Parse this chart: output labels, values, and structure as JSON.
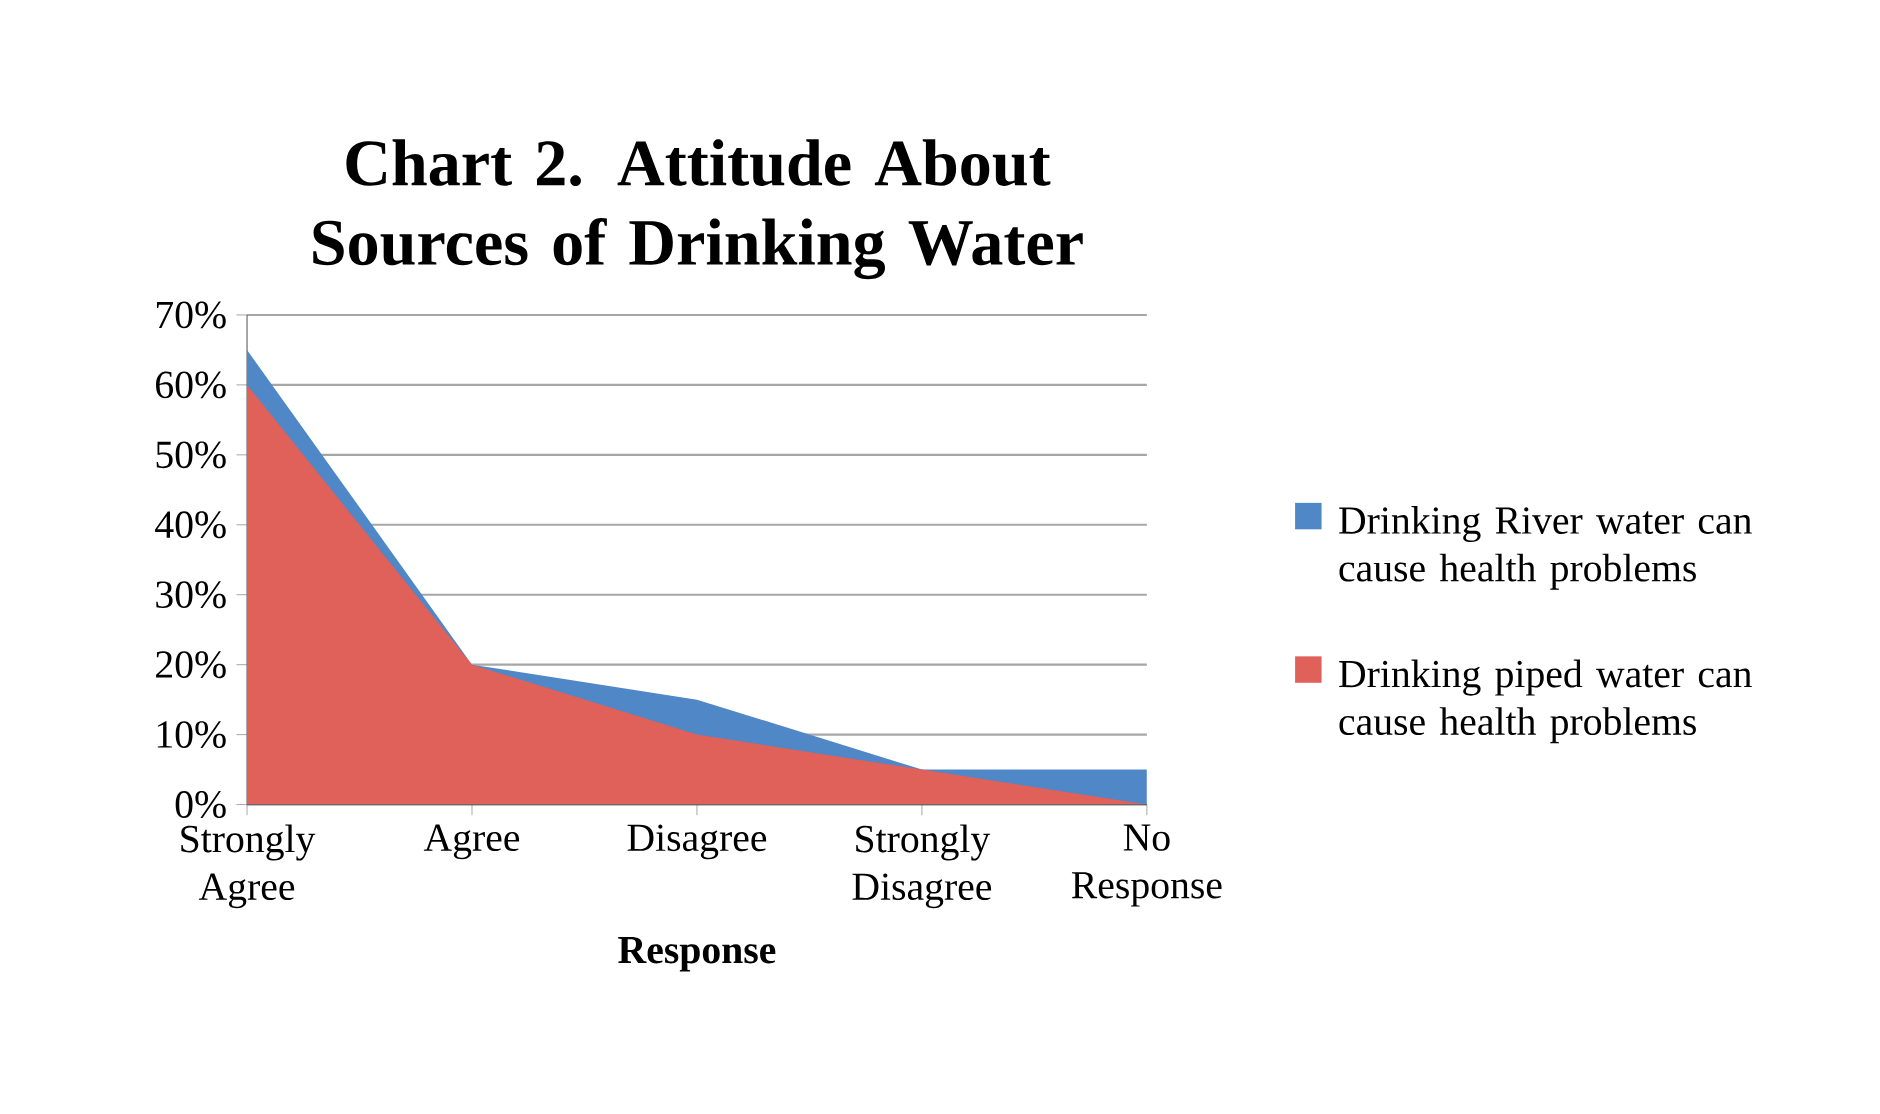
{
  "chart_data": {
    "type": "area",
    "title": "Chart 2. Attitude About Sources of Drinking Water",
    "xlabel": "Response",
    "categories": [
      "Strongly Agree",
      "Agree",
      "Disagree",
      "Strongly Disagree",
      "No Response"
    ],
    "series": [
      {
        "name": "Drinking River water can cause health problems",
        "color": "#4f87c7",
        "values": [
          65,
          20,
          15,
          5,
          5
        ]
      },
      {
        "name": "Drinking piped water can cause health problems",
        "color": "#e0605a",
        "values": [
          60,
          20,
          10,
          5,
          0
        ]
      }
    ],
    "ylim": [
      0,
      70
    ],
    "yticks": [
      {
        "value": 0,
        "label": "0%"
      },
      {
        "value": 10,
        "label": "10%"
      },
      {
        "value": 20,
        "label": "20%"
      },
      {
        "value": 30,
        "label": "30%"
      },
      {
        "value": 40,
        "label": "40%"
      },
      {
        "value": 50,
        "label": "50%"
      },
      {
        "value": 60,
        "label": "60%"
      },
      {
        "value": 70,
        "label": "70%"
      }
    ],
    "grid": "y",
    "legend": "right"
  }
}
